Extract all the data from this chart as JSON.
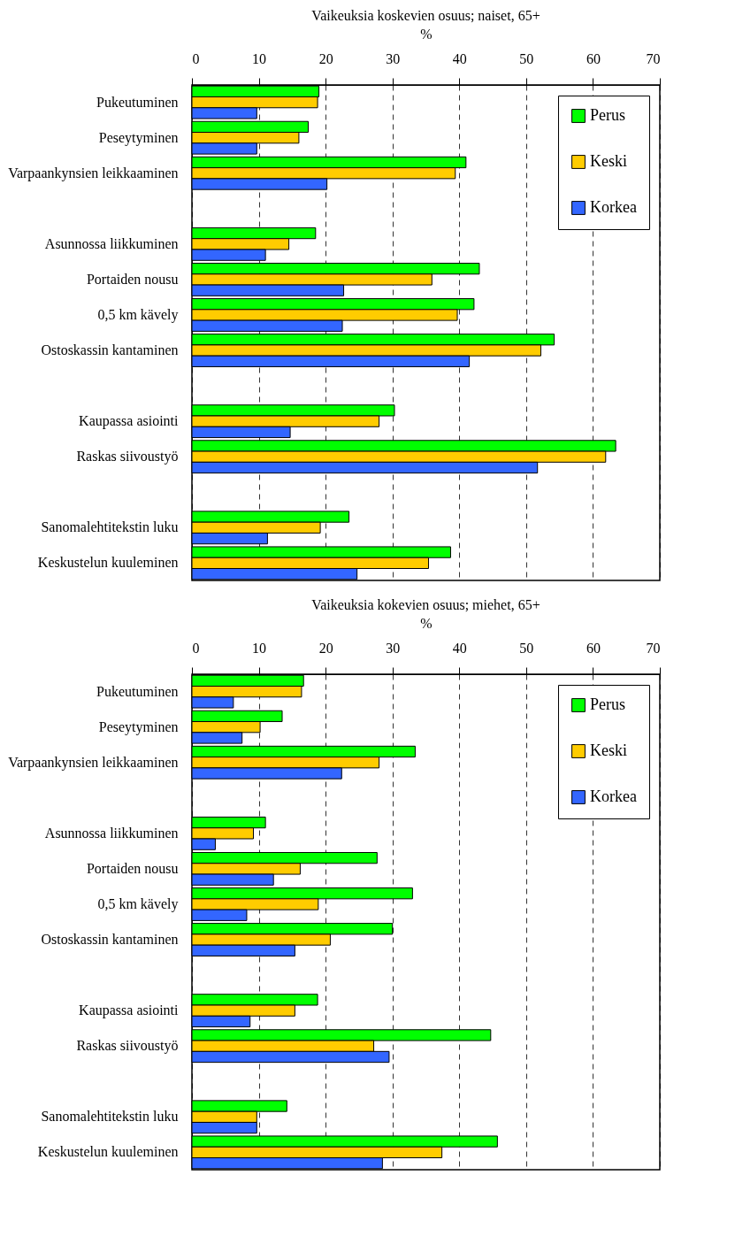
{
  "chart_data": [
    {
      "type": "bar",
      "orientation": "horizontal",
      "title": "Vaikeuksia koskevien osuus; naiset, 65+",
      "xlabel": "%",
      "categories": [
        "Pukeutuminen",
        "Peseytyminen",
        "Varpaankynsien leikkaaminen",
        null,
        "Asunnossa liikkuminen",
        "Portaiden nousu",
        "0,5 km kävely",
        "Ostoskassin kantaminen",
        null,
        "Kaupassa asiointi",
        "Raskas siivoustyö",
        null,
        "Sanomalehtitekstin luku",
        "Keskustelun kuuleminen"
      ],
      "series": [
        {
          "name": "Perus",
          "color": "#00ff00",
          "values": [
            19.0,
            17.4,
            41.0,
            null,
            18.5,
            43.0,
            42.2,
            54.2,
            null,
            30.3,
            63.4,
            null,
            23.5,
            38.7
          ]
        },
        {
          "name": "Keski",
          "color": "#ffcc00",
          "values": [
            18.8,
            16.0,
            39.4,
            null,
            14.5,
            35.9,
            39.7,
            52.2,
            null,
            28.0,
            61.9,
            null,
            19.2,
            35.4
          ]
        },
        {
          "name": "Korkea",
          "color": "#3366ff",
          "values": [
            9.7,
            9.7,
            20.2,
            null,
            11.0,
            22.7,
            22.5,
            41.5,
            null,
            14.7,
            51.7,
            null,
            11.3,
            24.7
          ]
        }
      ],
      "xlim": [
        0,
        70
      ],
      "xticks": [
        0,
        10,
        20,
        30,
        40,
        50,
        60,
        70
      ],
      "grid": "x",
      "legend": "top right"
    },
    {
      "type": "bar",
      "orientation": "horizontal",
      "title": "Vaikeuksia kokevien osuus; miehet, 65+",
      "xlabel": "%",
      "categories": [
        "Pukeutuminen",
        "Peseytyminen",
        "Varpaankynsien leikkaaminen",
        null,
        "Asunnossa liikkuminen",
        "Portaiden nousu",
        "0,5 km kävely",
        "Ostoskassin kantaminen",
        null,
        "Kaupassa asiointi",
        "Raskas siivoustyö",
        null,
        "Sanomalehtitekstin luku",
        "Keskustelun kuuleminen"
      ],
      "series": [
        {
          "name": "Perus",
          "color": "#00ff00",
          "values": [
            16.7,
            13.5,
            33.4,
            null,
            11.0,
            27.7,
            33.0,
            30.0,
            null,
            18.8,
            44.7,
            null,
            14.2,
            45.7
          ]
        },
        {
          "name": "Keski",
          "color": "#ffcc00",
          "values": [
            16.4,
            10.2,
            28.0,
            null,
            9.2,
            16.2,
            18.9,
            20.7,
            null,
            15.4,
            27.2,
            null,
            9.7,
            37.4
          ]
        },
        {
          "name": "Korkea",
          "color": "#3366ff",
          "values": [
            6.2,
            7.5,
            22.4,
            null,
            3.5,
            12.2,
            8.2,
            15.4,
            null,
            8.7,
            29.5,
            null,
            9.7,
            28.5
          ]
        }
      ],
      "xlim": [
        0,
        70
      ],
      "xticks": [
        0,
        10,
        20,
        30,
        40,
        50,
        60,
        70
      ],
      "grid": "x",
      "legend": "top right"
    }
  ]
}
